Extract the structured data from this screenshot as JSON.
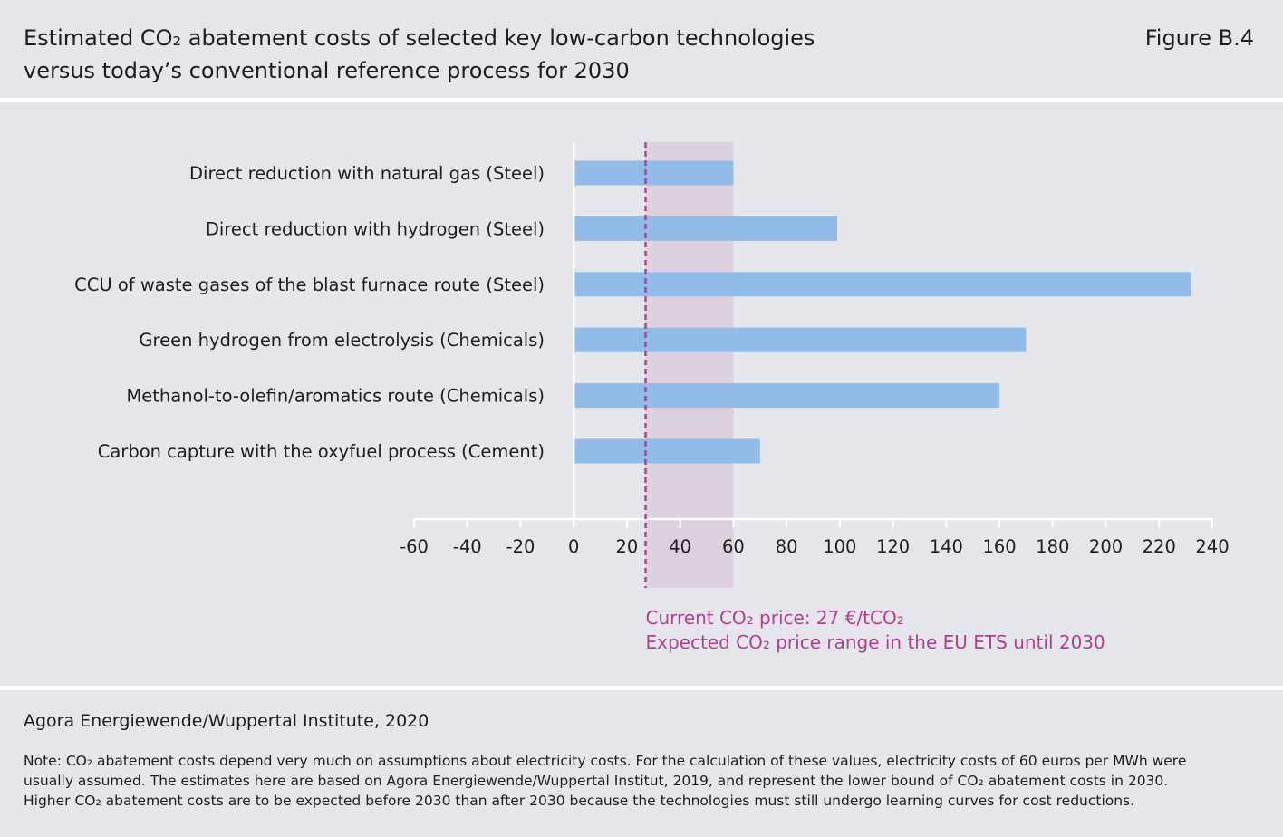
{
  "header": {
    "title_line1": "Estimated CO₂ abatement costs of selected key low-carbon technologies",
    "title_line2": "versus today’s conventional reference process for 2030",
    "figure_number": "Figure B.4"
  },
  "chart_data": {
    "type": "bar",
    "orientation": "horizontal",
    "categories": [
      "Direct reduction with natural gas (Steel)",
      "Direct reduction with hydrogen (Steel)",
      "CCU of waste gases of the blast furnace route (Steel)",
      "Green hydrogen from electrolysis (Chemicals)",
      "Methanol-to-olefin/aromatics route (Chemicals)",
      "Carbon capture with the oxyfuel process (Cement)"
    ],
    "values": [
      60,
      99,
      232,
      170,
      160,
      70
    ],
    "xlim": [
      -60,
      240
    ],
    "xticks": [
      -60,
      -40,
      -20,
      0,
      20,
      40,
      60,
      80,
      100,
      120,
      140,
      160,
      180,
      200,
      220,
      240
    ],
    "xtick_labels": [
      "-60",
      "-40",
      "-20",
      "0",
      "20",
      "40",
      "60",
      "80",
      "100",
      "120",
      "140",
      "160",
      "180",
      "200",
      "220",
      "240"
    ],
    "current_price": 27,
    "current_price_label": "Current CO₂ price: 27 €/tCO₂",
    "expected_range": [
      27,
      60
    ],
    "expected_range_label": "Expected CO₂ price range in the EU ETS until 2030",
    "grid": false,
    "colors": {
      "bar": "#93bbe8",
      "range": "#ddd1e0",
      "marker": "#b43e8f",
      "axis": "#ffffff",
      "text": "#1d1d1d"
    }
  },
  "footer": {
    "source": "Agora Energiewende/Wuppertal Institute, 2020",
    "note_line1": "Note: CO₂ abatement costs depend very much on assumptions about electricity costs. For the calculation of these values, electricity costs of 60 euros per MWh were",
    "note_line2": "usually assumed. The estimates here are based on Agora Energiewende/Wuppertal Institut, 2019, and represent the lower bound of CO₂ abatement costs in 2030.",
    "note_line3": "Higher CO₂ abatement costs are to be expected before 2030 than after 2030 because the technologies must still undergo learning curves for cost reductions."
  }
}
